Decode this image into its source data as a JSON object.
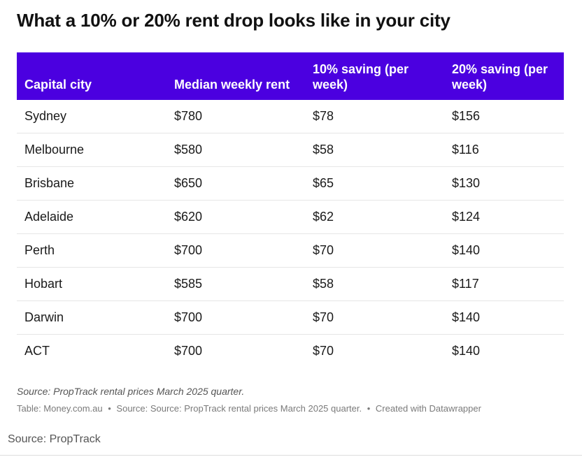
{
  "title": "What a 10% or 20% rent drop looks like in your city",
  "chart_data": {
    "type": "table",
    "title": "What a 10% or 20% rent drop looks like in your city",
    "columns": [
      "Capital city",
      "Median weekly rent",
      "10% saving (per week)",
      "20% saving (per week)"
    ],
    "rows": [
      [
        "Sydney",
        "$780",
        "$78",
        "$156"
      ],
      [
        "Melbourne",
        "$580",
        "$58",
        "$116"
      ],
      [
        "Brisbane",
        "$650",
        "$65",
        "$130"
      ],
      [
        "Adelaide",
        "$620",
        "$62",
        "$124"
      ],
      [
        "Perth",
        "$700",
        "$70",
        "$140"
      ],
      [
        "Hobart",
        "$585",
        "$58",
        "$117"
      ],
      [
        "Darwin",
        "$700",
        "$70",
        "$140"
      ],
      [
        "ACT",
        "$700",
        "$70",
        "$140"
      ]
    ],
    "header_color": "#4b00e0"
  },
  "notes": {
    "source_note": "Source: PropTrack rental prices March 2025 quarter.",
    "credit_table": "Table: Money.com.au",
    "credit_source": "Source: Source: PropTrack rental prices March 2025 quarter.",
    "credit_tool": "Created with Datawrapper",
    "separator": "•"
  },
  "caption": "Source: PropTrack"
}
